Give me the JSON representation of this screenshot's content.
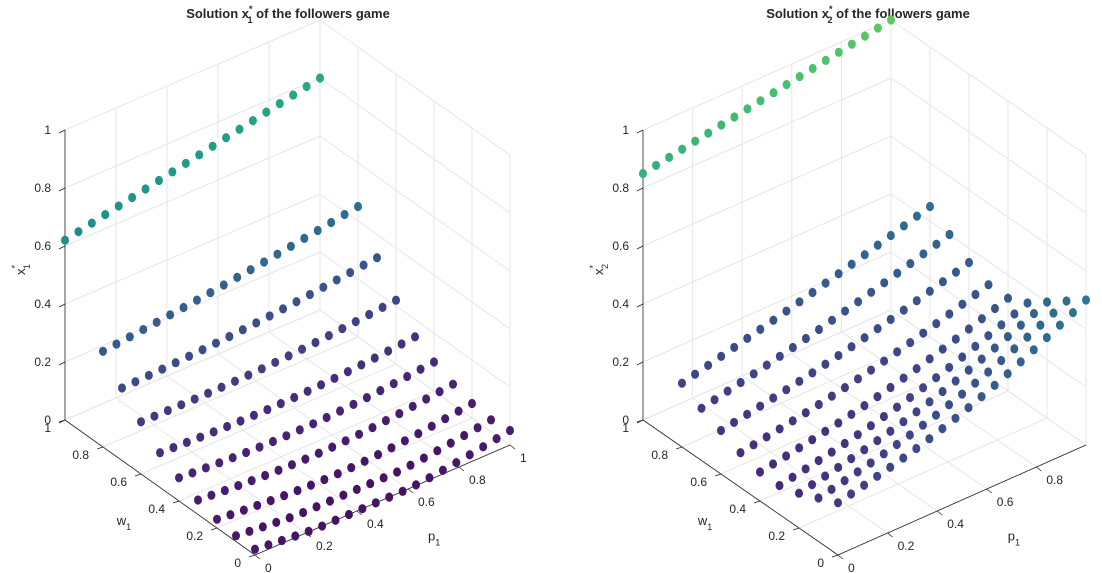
{
  "chart_data": [
    {
      "type": "scatter",
      "plot": "3d",
      "title": {
        "pre": "Solution x",
        "sub": "1",
        "sup": "*",
        "post": " of the followers game"
      },
      "zlabel": {
        "base": "x",
        "sub": "1",
        "sup": "*"
      },
      "ylabel": {
        "base": "w",
        "sub": "1"
      },
      "xlabel": {
        "base": "p",
        "sub": "1"
      },
      "xlim": [
        0,
        1
      ],
      "ylim": [
        0,
        1
      ],
      "zlim": [
        0,
        1
      ],
      "xticks": [
        "0",
        "0.2",
        "0.4",
        "0.6",
        "0.8",
        "1"
      ],
      "yticks": [
        "0",
        "0.2",
        "0.4",
        "0.6",
        "0.8",
        "1"
      ],
      "zticks": [
        "0",
        "0.2",
        "0.4",
        "0.6",
        "0.8",
        "1"
      ],
      "grid": true,
      "colormap": "viridis",
      "series_desc": "Surface sampled at grid points (p1, w1); top row at w1=1 near 0.6-0.8, lower rows decreasing to a trough near p1~0.5-0.7.",
      "data_rows": [
        {
          "w": 1.0,
          "z_start": 0.62,
          "z_end": 0.8
        },
        {
          "w": 0.8,
          "z_start": 0.33,
          "z_end": 0.45
        },
        {
          "w": 0.7,
          "z_start": 0.25,
          "z_end": 0.32
        },
        {
          "w": 0.6,
          "z_start": 0.18,
          "z_end": 0.22
        },
        {
          "w": 0.5,
          "z_start": 0.12,
          "z_end": 0.14
        },
        {
          "w": 0.4,
          "z_start": 0.08,
          "z_end": 0.1
        },
        {
          "w": 0.3,
          "z_start": 0.05,
          "z_end": 0.07
        },
        {
          "w": 0.2,
          "z_start": 0.03,
          "z_end": 0.05
        },
        {
          "w": 0.1,
          "z_start": 0.02,
          "z_end": 0.04
        },
        {
          "w": 0.0,
          "z_start": 0.02,
          "z_end": 0.05
        }
      ]
    },
    {
      "type": "scatter",
      "plot": "3d",
      "title": {
        "pre": "Solution x",
        "sub": "2",
        "sup": "*",
        "post": " of the followers game"
      },
      "zlabel": {
        "base": "x",
        "sub": "2",
        "sup": "*"
      },
      "ylabel": {
        "base": "w",
        "sub": "1"
      },
      "xlabel": {
        "base": "p",
        "sub": "1"
      },
      "xlim": [
        0,
        1
      ],
      "ylim": [
        0,
        1
      ],
      "zlim": [
        0,
        1
      ],
      "xticks": [
        "0",
        "0.2",
        "0.4",
        "0.6",
        "0.8"
      ],
      "yticks": [
        "0",
        "0.2",
        "0.4",
        "0.6",
        "0.8",
        "1"
      ],
      "zticks": [
        "0",
        "0.2",
        "0.4",
        "0.6",
        "0.8",
        "1"
      ],
      "grid": true,
      "colormap": "viridis",
      "series_desc": "Top row at w1=1 near 0.8-1.0; lower surface near 0.2-0.4, rising toward high p1 and low w1.",
      "data_rows": [
        {
          "w": 1.0,
          "z_start": 0.85,
          "z_end": 1.0
        },
        {
          "w": 0.8,
          "z_start": 0.22,
          "z_end": 0.45
        },
        {
          "w": 0.7,
          "z_start": 0.18,
          "z_end": 0.4
        },
        {
          "w": 0.6,
          "z_start": 0.15,
          "z_end": 0.35
        },
        {
          "w": 0.5,
          "z_start": 0.12,
          "z_end": 0.32
        },
        {
          "w": 0.4,
          "z_start": 0.1,
          "z_end": 0.32
        },
        {
          "w": 0.3,
          "z_start": 0.1,
          "z_end": 0.35
        },
        {
          "w": 0.2,
          "z_start": 0.12,
          "z_end": 0.4
        },
        {
          "w": 0.1,
          "z_start": 0.15,
          "z_end": 0.45
        },
        {
          "w": 0.0,
          "z_start": 0.18,
          "z_end": 0.5
        }
      ]
    }
  ]
}
